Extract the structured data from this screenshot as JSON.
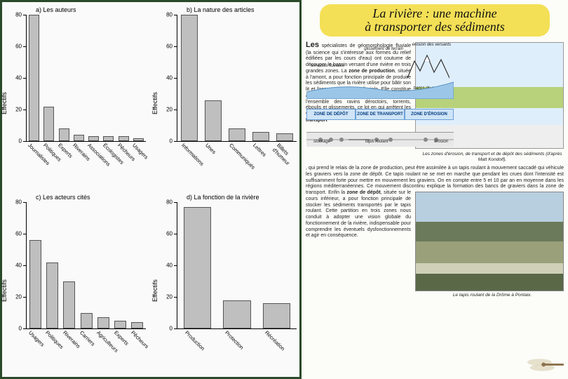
{
  "left_panel": {
    "background_color": "#fafafa",
    "border_color": "#2a4a2a",
    "ylabel": "Effectifs",
    "label_fontsize": 9,
    "tick_fontsize": 8,
    "cat_fontsize": 7.5,
    "bar_fill": "#bfbfbf",
    "bar_border": "#555555",
    "charts": [
      {
        "title": "a) Les auteurs",
        "ymax": 80,
        "ytick_step": 20,
        "categories": [
          "Journalistes",
          "Politiques",
          "Experts",
          "Riverains",
          "Associations",
          "Écologistes",
          "Pêcheurs",
          "Usagers"
        ],
        "values": [
          85,
          22,
          8,
          4,
          3,
          3,
          3,
          2
        ]
      },
      {
        "title": "b) La nature des articles",
        "ymax": 80,
        "ytick_step": 20,
        "categories": [
          "Informations",
          "Unes",
          "Communiqués",
          "Lettres",
          "Billets d'humeur"
        ],
        "values": [
          83,
          26,
          8,
          6,
          5
        ]
      },
      {
        "title": "c) Les acteurs cités",
        "ymax": 80,
        "ytick_step": 20,
        "categories": [
          "Usagers",
          "Politiques",
          "Riverains",
          "Carriers",
          "Agriculteurs",
          "Experts",
          "Pêcheurs"
        ],
        "values": [
          56,
          42,
          30,
          10,
          7,
          5,
          4
        ]
      },
      {
        "title": "d) La fonction de la rivière",
        "ymax": 80,
        "ytick_step": 20,
        "categories": [
          "Production",
          "Protection",
          "Récréation"
        ],
        "values": [
          77,
          18,
          16
        ]
      }
    ]
  },
  "right_panel": {
    "title_line1": "La rivière : une machine",
    "title_line2": "à transporter des sédiments",
    "title_bg": "#f4e056",
    "title_fontsize": 18,
    "lead_text": "Les",
    "para1": " spécialistes de géomorphologie fluviale (la science qui s'intéresse aux formes du relief édifiées par les cours d'eau) ont coutume de découper le bassin versant d'une rivière en trois grandes zones. La ",
    "bold1": "zone de production",
    "para1b": ", située à l'amont, a pour fonction principale de produire les sédiments que la rivière utilise pour bâtir son lit et façonner sa plaine alluviale. Elle constitue ainsi l'usine à graviers et clé regroupe l'ensemble des ravins déroctoirs, torrents, éboulis et glissements, ce lot en qui arrêtent les versants de nos montagnes. La ",
    "bold2": "zone de transport",
    "para2": ", qui prend le relais de la zone de production, peut être assimilée à un tapis roulant à mouvement saccadé qui véhicule les graviers vers la zone de dépôt. Ce tapis roulant ne se met en marche que pendant les crues dont l'intensité est suffisamment forte pour mettre en mouvement les graviers. On en compte entre 5 et 10 par an en moyenne dans les régions méditerranéennes. Ce mouvement discontinu explique la formation des bancs de graviers dans la zone de transport. Enfin la ",
    "bold3": "zone de dépôt",
    "para3": ", située sur le cours inférieur, a pour fonction principale de stocker les sédiments transportés par le tapis roulant. Cette partition en trois zones nous conduit à adopter une vision globale du fonctionnement de la rivière, indispensable pour comprendre les éventuels dysfonctionnements et agir en conséquence.",
    "diagram": {
      "sky_color": "#dfeefb",
      "land_color": "#b7d27a",
      "zone_band_bg": "#cfe4f7",
      "zone_band_border": "#6aa1d8",
      "zones": [
        "ZONE DE DÉPÔT",
        "ZONE DE TRANSPORT",
        "ZONE D'ÉROSION"
      ],
      "labels": {
        "glissement": "glissement de terrain",
        "erosion": "érosion des versants",
        "terrasses": "terrasses fluviales",
        "bancs": "bancs de graviers",
        "stockage": "stockage",
        "tapis": "tapis roulant",
        "erosion2": "érosion"
      },
      "caption": "Les zones d'érosion, de transport et de dépôt des sédiments (d'après Matt Kondolf)."
    },
    "photo": {
      "caption": "Le tapis roulant de la Drôme à Pontaix.",
      "sky": "#b8cfe0",
      "hills": "#6a7a5a",
      "valley": "#9aa07a",
      "gravel": "#cfd0b8",
      "foreground": "#5a6848"
    }
  }
}
